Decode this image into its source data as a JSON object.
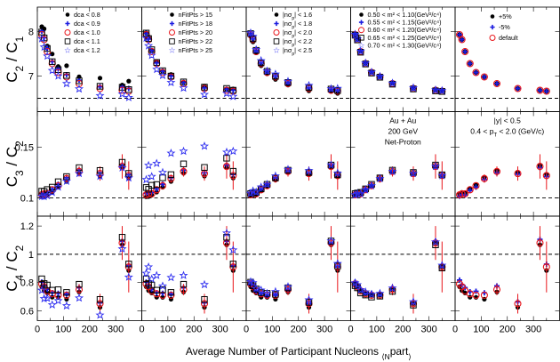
{
  "chart_data": {
    "type": "scatter",
    "xlabel_parts": [
      "Average Number of Participant Nucleons ",
      "⟨N",
      "part",
      "⟩"
    ],
    "xlim": [
      0,
      400
    ],
    "xticks": [
      "0",
      "100",
      "200",
      "300"
    ],
    "columns": [
      {
        "legend": [
          "dca < 0.8",
          "dca < 0.9",
          "dca < 1.0",
          "dca < 1.1",
          "dca < 1.2"
        ],
        "markers": [
          "dot",
          "plus",
          "ocircle",
          "osquare",
          "star"
        ],
        "colors": [
          "#000000",
          "#1a1adf",
          "#e8151a",
          "#000000",
          "#2d2df0"
        ],
        "offsets": [
          [
            0.18,
            -0.002,
            -0.02
          ],
          [
            0.06,
            0.001,
            0.01
          ],
          [
            0,
            0,
            0
          ],
          [
            0.05,
            0.003,
            0.03
          ],
          [
            -0.12,
            -0.002,
            -0.06
          ]
        ]
      },
      {
        "legend": [
          "nFitPts > 15",
          "nFitPts > 18",
          "nFitPts > 20",
          "nFitPts > 22",
          "nFitPts > 25"
        ],
        "markers": [
          "dot",
          "plus",
          "ocircle",
          "osquare",
          "star"
        ],
        "colors": [
          "#000000",
          "#1a1adf",
          "#e8151a",
          "#000000",
          "#2d2df0"
        ],
        "offsets": [
          [
            0.04,
            -0.002,
            -0.02
          ],
          [
            0.02,
            0.001,
            0.01
          ],
          [
            0,
            0,
            0
          ],
          [
            0.03,
            0.006,
            0.03
          ],
          [
            -0.1,
            0.02,
            0.1
          ]
        ]
      },
      {
        "legend_parts": [
          [
            "|nσ",
            "p",
            "| < 1.6"
          ],
          [
            "|nσ",
            "p",
            "| < 1.8"
          ],
          [
            "|nσ",
            "p",
            "| < 2.0"
          ],
          [
            "|nσ",
            "p",
            "| < 2.2"
          ],
          [
            "|nσ",
            "p",
            "| < 2.5"
          ]
        ],
        "markers": [
          "dot",
          "plus",
          "ocircle",
          "osquare",
          "star"
        ],
        "colors": [
          "#000000",
          "#1a1adf",
          "#e8151a",
          "#000000",
          "#2d2df0"
        ],
        "offsets": [
          [
            -0.04,
            -0.001,
            -0.02
          ],
          [
            0.02,
            0.001,
            0.0
          ],
          [
            0,
            0,
            0
          ],
          [
            0.02,
            0.001,
            0.01
          ],
          [
            0.05,
            0.002,
            0.02
          ]
        ]
      },
      {
        "legend": [
          "0.50 < m² < 1.10(GeV²/c⁴)",
          "0.55 < m² < 1.15(GeV²/c⁴)",
          "0.60 < m² < 1.20(GeV²/c⁴)",
          "0.65 < m² < 1.25(GeV²/c⁴)",
          "0.70 < m² < 1.30(GeV²/c⁴)"
        ],
        "markers": [
          "dot",
          "plus",
          "ocircle",
          "osquare",
          "star"
        ],
        "colors": [
          "#000000",
          "#1a1adf",
          "#e8151a",
          "#000000",
          "#2d2df0"
        ],
        "offsets": [
          [
            0.01,
            0,
            0
          ],
          [
            0.01,
            0,
            0.01
          ],
          [
            0,
            0,
            0
          ],
          [
            -0.01,
            0.001,
            -0.01
          ],
          [
            0.01,
            0,
            0.01
          ]
        ]
      },
      {
        "legend": [
          "+5%",
          "-5%",
          "default"
        ],
        "markers": [
          "dot",
          "plus",
          "ocircle"
        ],
        "colors": [
          "#000000",
          "#1a1adf",
          "#e8151a"
        ],
        "offsets": [
          [
            0.0,
            0.001,
            -0.02
          ],
          [
            0.0,
            -0.001,
            0.02
          ],
          [
            0,
            0,
            0
          ]
        ]
      }
    ],
    "rows": [
      {
        "ylabel_parts": [
          "C",
          "2",
          " / C",
          "1"
        ],
        "ylim": [
          6.2,
          8.55
        ],
        "yticks": [
          "7",
          "8"
        ],
        "reference_line": 6.5,
        "npart": [
          17,
          26,
          38,
          57,
          80,
          112,
          160,
          240,
          325,
          350
        ],
        "default": [
          7.93,
          7.82,
          7.55,
          7.28,
          7.08,
          6.98,
          6.83,
          6.72,
          6.68,
          6.66
        ],
        "errors": [
          0.04,
          0.04,
          0.04,
          0.04,
          0.04,
          0.04,
          0.04,
          0.04,
          0.04,
          0.04
        ]
      },
      {
        "ylabel_parts": [
          "C",
          "3",
          " / C",
          "2"
        ],
        "ylim": [
          0.082,
          0.185
        ],
        "yticks": [
          "0.1",
          "0.15"
        ],
        "reference_line": 0.1,
        "npart": [
          17,
          26,
          38,
          57,
          80,
          112,
          160,
          240,
          325,
          350
        ],
        "default": [
          0.103,
          0.104,
          0.104,
          0.108,
          0.112,
          0.119,
          0.126,
          0.124,
          0.131,
          0.122
        ],
        "errors": [
          0.002,
          0.002,
          0.002,
          0.003,
          0.003,
          0.004,
          0.005,
          0.007,
          0.012,
          0.014
        ]
      },
      {
        "ylabel_parts": [
          "C",
          "4",
          " / C",
          "2"
        ],
        "ylim": [
          0.53,
          1.27
        ],
        "yticks": [
          "0.6",
          "0.8",
          "1",
          "1.2"
        ],
        "reference_line": 1.0,
        "npart": [
          17,
          26,
          38,
          57,
          80,
          112,
          160,
          240,
          325,
          350
        ],
        "default": [
          0.79,
          0.77,
          0.74,
          0.72,
          0.71,
          0.71,
          0.75,
          0.65,
          1.08,
          0.91
        ],
        "errors": [
          0.01,
          0.01,
          0.01,
          0.015,
          0.02,
          0.025,
          0.04,
          0.07,
          0.12,
          0.18
        ]
      }
    ],
    "annotations": [
      {
        "row": 1,
        "col": 3,
        "lines": [
          [
            "Au + Au"
          ],
          [
            "200 GeV"
          ],
          [
            "Net-Proton"
          ]
        ]
      },
      {
        "row": 1,
        "col": 4,
        "lines": [
          [
            "|y| < 0.5"
          ],
          [
            "0.4 < p",
            "T",
            " < 2.0 (GeV/c)"
          ]
        ]
      }
    ]
  }
}
